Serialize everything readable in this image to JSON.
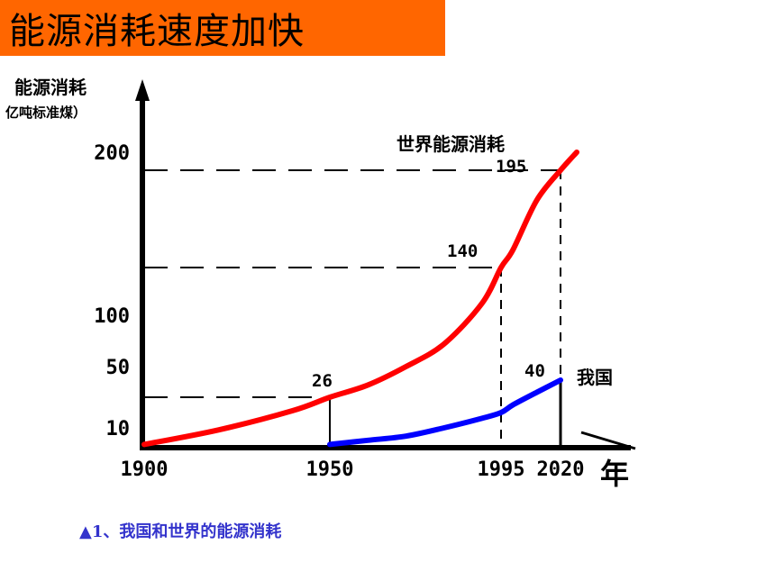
{
  "title": "能源消耗速度加快",
  "caption": "▲1、我国和世界的能源消耗",
  "colors": {
    "banner": "#ff6600",
    "world": "#ff0000",
    "china": "#0000ff",
    "caption": "#3333cc"
  },
  "chart_data": {
    "type": "line",
    "ylabel": "能源消耗",
    "yunit": "亿吨标准煤）",
    "xlabel": "年",
    "xticks": [
      "1900",
      "1950",
      "1995",
      "2020"
    ],
    "yticks": [
      "10",
      "50",
      "100",
      "200"
    ],
    "series": [
      {
        "name": "世界能源消耗",
        "x": [
          1900,
          1920,
          1940,
          1950,
          1960,
          1970,
          1980,
          1990,
          1995,
          2000,
          2010,
          2020,
          2021
        ],
        "y": [
          2,
          9,
          19,
          26,
          36,
          50,
          72,
          110,
          140,
          150,
          178,
          195,
          200
        ]
      },
      {
        "name": "我国",
        "x": [
          1950,
          1960,
          1970,
          1980,
          1990,
          1995,
          2000,
          2010,
          2020
        ],
        "y": [
          2,
          4,
          6,
          10,
          15,
          18,
          22,
          30,
          40
        ]
      }
    ],
    "data_labels": [
      {
        "text": "26",
        "x": 1950,
        "y": 26
      },
      {
        "text": "140",
        "x": 1995,
        "y": 140
      },
      {
        "text": "195",
        "x": 2020,
        "y": 195
      },
      {
        "text": "40",
        "x": 2020,
        "y": 40
      }
    ]
  }
}
